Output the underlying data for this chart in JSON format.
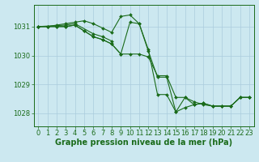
{
  "background_color": "#cce8f0",
  "grid_color": "#aaccdd",
  "line_color": "#1a6b1a",
  "marker_color": "#1a6b1a",
  "xlabel": "Graphe pression niveau de la mer (hPa)",
  "xlabel_fontsize": 7,
  "tick_fontsize": 6,
  "ylim": [
    1027.55,
    1031.75
  ],
  "xlim": [
    -0.5,
    23.5
  ],
  "yticks": [
    1028,
    1029,
    1030,
    1031
  ],
  "xticks": [
    0,
    1,
    2,
    3,
    4,
    5,
    6,
    7,
    8,
    9,
    10,
    11,
    12,
    13,
    14,
    15,
    16,
    17,
    18,
    19,
    20,
    21,
    22,
    23
  ],
  "series": [
    {
      "x": [
        0,
        1,
        2,
        3,
        4,
        5,
        6,
        7,
        8,
        9,
        10,
        11,
        12,
        13,
        14,
        15,
        16,
        17,
        18,
        19,
        20,
        21,
        22,
        23
      ],
      "y": [
        1031.0,
        1031.0,
        1031.05,
        1031.1,
        1031.15,
        1031.2,
        1031.1,
        1030.95,
        1030.8,
        1031.35,
        1031.4,
        1031.1,
        1030.2,
        1028.65,
        1028.65,
        1028.05,
        1028.2,
        1028.3,
        1028.35,
        1028.25,
        1028.25,
        1028.25,
        1028.55,
        1028.55
      ]
    },
    {
      "x": [
        0,
        3,
        4,
        6,
        7,
        8
      ],
      "y": [
        1031.0,
        1031.05,
        1031.1,
        1030.75,
        1030.65,
        1030.5
      ]
    },
    {
      "x": [
        0,
        1,
        2,
        3,
        4,
        5,
        6,
        7,
        8,
        9,
        10,
        11,
        12,
        13,
        14,
        15,
        16,
        17,
        18,
        19,
        20,
        21,
        22,
        23
      ],
      "y": [
        1031.0,
        1031.0,
        1031.0,
        1031.0,
        1031.05,
        1030.85,
        1030.65,
        1030.55,
        1030.4,
        1030.05,
        1031.15,
        1031.1,
        1030.15,
        1029.25,
        1029.25,
        1028.05,
        1028.55,
        1028.4,
        1028.3,
        1028.25,
        1028.25,
        1028.25,
        1028.55,
        1028.55
      ]
    },
    {
      "x": [
        0,
        1,
        2,
        3,
        4,
        5,
        6,
        7,
        8,
        9,
        10,
        11,
        12,
        13,
        14,
        15,
        16,
        17,
        18,
        19,
        20,
        21,
        22,
        23
      ],
      "y": [
        1031.0,
        1031.0,
        1031.0,
        1031.0,
        1031.05,
        1030.85,
        1030.65,
        1030.55,
        1030.4,
        1030.05,
        1030.05,
        1030.05,
        1029.95,
        1029.3,
        1029.3,
        1028.55,
        1028.55,
        1028.3,
        1028.35,
        1028.25,
        1028.25,
        1028.25,
        1028.55,
        1028.55
      ]
    }
  ]
}
